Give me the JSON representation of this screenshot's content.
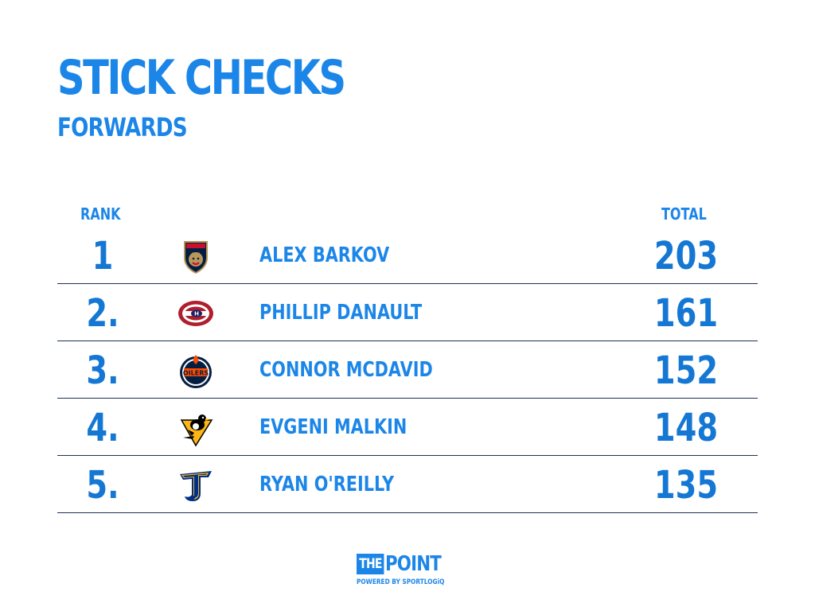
{
  "header": {
    "title": "STICK CHECKS",
    "subtitle": "FORWARDS"
  },
  "table": {
    "columns": {
      "rank": "RANK",
      "total": "TOTAL"
    },
    "rows": [
      {
        "rank": "1",
        "team_icon": "florida-panthers-logo-icon",
        "player": "ALEX BARKOV",
        "total": "203"
      },
      {
        "rank": "2.",
        "team_icon": "montreal-canadiens-logo-icon",
        "player": "PHILLIP DANAULT",
        "total": "161"
      },
      {
        "rank": "3.",
        "team_icon": "edmonton-oilers-logo-icon",
        "player": "CONNOR MCDAVID",
        "total": "152"
      },
      {
        "rank": "4.",
        "team_icon": "pittsburgh-penguins-logo-icon",
        "player": "EVGENI MALKIN",
        "total": "148"
      },
      {
        "rank": "5.",
        "team_icon": "st-louis-blues-logo-icon",
        "player": "RYAN O'REILLY",
        "total": "135"
      }
    ]
  },
  "footer": {
    "brand_the": "THE",
    "brand_point": "POINT",
    "powered_by": "POWERED BY SPORTLOGiQ"
  },
  "colors": {
    "accent": "#1c86e8",
    "numbers": "#1577d4",
    "divider": "#1a3350",
    "background": "#ffffff"
  }
}
